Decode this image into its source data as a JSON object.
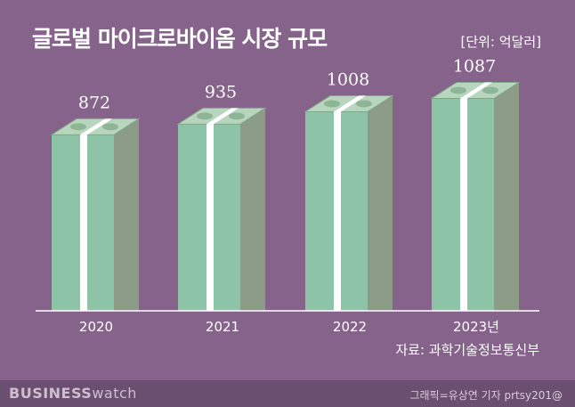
{
  "title": "글로벌 마이크로바이옴 시장 규모",
  "unit": "[단위: 억달러]",
  "source": "자료: 과학기술정보통신부",
  "brand": {
    "bold": "BUSINESS",
    "light": "watch"
  },
  "credit": "그래픽=유상연 기자 prtsy201@",
  "colors": {
    "background": "#86638a",
    "bar_front": "#8dc3a7",
    "bar_side": "#8c9c86",
    "bar_top": "#b8d6bd",
    "band": "#ffffff"
  },
  "chart_data": {
    "type": "bar",
    "categories": [
      "2020",
      "2021",
      "2022",
      "2023년"
    ],
    "values": [
      872,
      935,
      1008,
      1087
    ],
    "data_labels": [
      "872",
      "935",
      "1008",
      "1087"
    ],
    "grid": false,
    "legend": "none"
  }
}
